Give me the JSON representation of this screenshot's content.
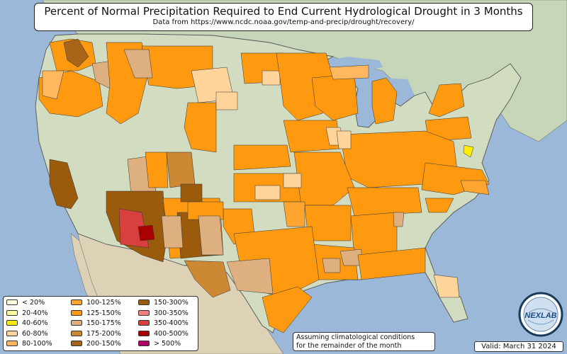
{
  "title": "Percent of Normal Precipitation Required to End Current Hydrological Drought in 3 Months",
  "subtitle": "Data from https://www.ncdc.noaa.gov/temp-and-precip/drought/recovery/",
  "legend": [
    {
      "label": "< 20%",
      "color": "#fffde0"
    },
    {
      "label": "20-40%",
      "color": "#fff9a0"
    },
    {
      "label": "40-60%",
      "color": "#ffee00"
    },
    {
      "label": "60-80%",
      "color": "#ffd49a"
    },
    {
      "label": "80-100%",
      "color": "#ffb860"
    },
    {
      "label": "100-125%",
      "color": "#ffa530"
    },
    {
      "label": "125-150%",
      "color": "#ff9910"
    },
    {
      "label": "150-175%",
      "color": "#deb080"
    },
    {
      "label": "175-200%",
      "color": "#cc8833"
    },
    {
      "label": "200-150%",
      "color": "#a86418"
    },
    {
      "label": "150-300%",
      "color": "#9a5c0c"
    },
    {
      "label": "300-350%",
      "color": "#f08080"
    },
    {
      "label": "350-400%",
      "color": "#d84040"
    },
    {
      "label": "400-500%",
      "color": "#a80000"
    },
    {
      "label": "> 500%",
      "color": "#b0006a"
    }
  ],
  "note": {
    "line1": "Assuming climatological conditions",
    "line2": "for the remainder of the month"
  },
  "valid": "Valid: March 31 2024",
  "logo_text": "NEXLAB",
  "colors": {
    "ocean": "#9cb8d8",
    "land": "#d2dcc0",
    "canada": "#c7d6b8",
    "mexico": "#ddd2b6",
    "orange": "#ff9910",
    "light_orange": "#ffb860",
    "tan": "#deb080",
    "brown": "#9a5c0c",
    "red": "#d84040",
    "dark_red": "#a80000"
  }
}
